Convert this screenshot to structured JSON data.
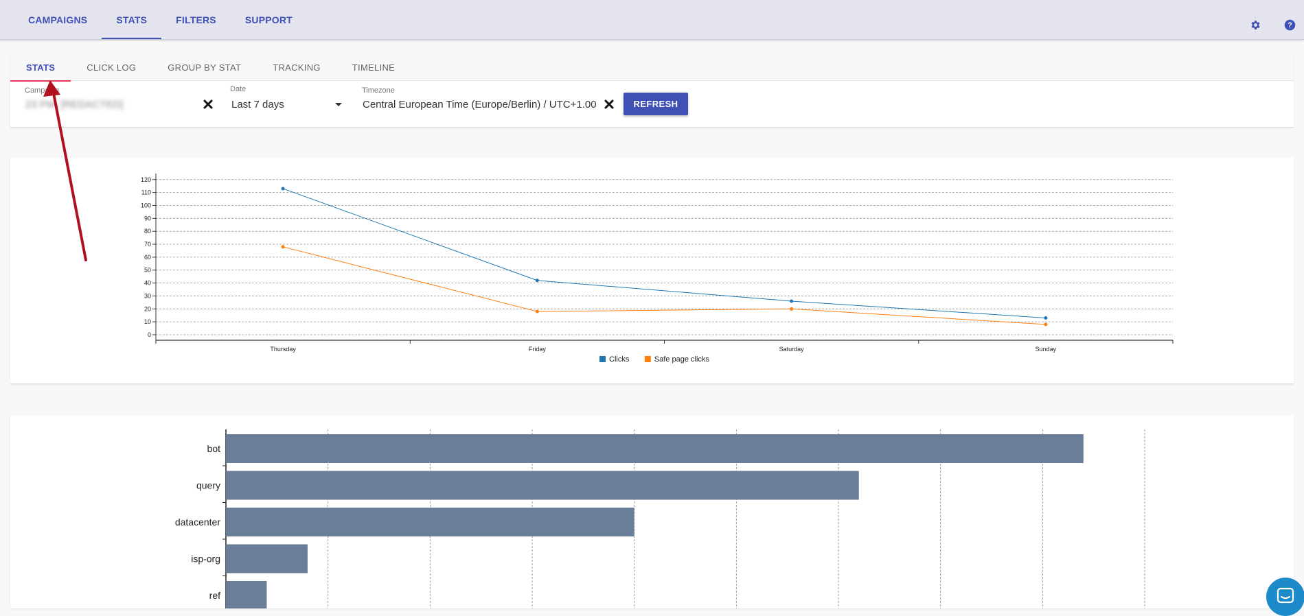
{
  "topnav": {
    "tabs": [
      {
        "label": "CAMPAIGNS",
        "active": false
      },
      {
        "label": "STATS",
        "active": true
      },
      {
        "label": "FILTERS",
        "active": false
      },
      {
        "label": "SUPPORT",
        "active": false
      }
    ],
    "icons": [
      "gear-icon",
      "help-icon"
    ]
  },
  "subnav": {
    "tabs": [
      {
        "label": "STATS",
        "active": true
      },
      {
        "label": "CLICK LOG",
        "active": false
      },
      {
        "label": "GROUP BY STAT",
        "active": false
      },
      {
        "label": "TRACKING",
        "active": false
      },
      {
        "label": "TIMELINE",
        "active": false
      }
    ]
  },
  "filters": {
    "campaign": {
      "label": "Campaign",
      "value": "23 PM: [REDACTED]"
    },
    "date": {
      "label": "Date",
      "value": "Last 7 days"
    },
    "timezone": {
      "label": "Timezone",
      "value": "Central European Time (Europe/Berlin) / UTC+1.00"
    },
    "refresh_label": "REFRESH"
  },
  "colors": {
    "accent": "#3f51b5",
    "active_underline": "#e53958",
    "clicks": "#1f77b4",
    "safe_page_clicks": "#ff7f0e",
    "bars": "#6a7d99",
    "annotation": "#b01020"
  },
  "chart_data": [
    {
      "type": "line",
      "x": [
        "Thursday",
        "Friday",
        "Saturday",
        "Sunday"
      ],
      "series": [
        {
          "name": "Clicks",
          "values": [
            113,
            42,
            26,
            13
          ]
        },
        {
          "name": "Safe page clicks",
          "values": [
            68,
            18,
            20,
            8
          ]
        }
      ],
      "yticks": [
        0,
        10,
        20,
        30,
        40,
        50,
        60,
        70,
        80,
        90,
        100,
        110,
        120
      ],
      "ylim": [
        0,
        122
      ],
      "grid": true,
      "legend": "bottom-center"
    },
    {
      "type": "bar",
      "orientation": "horizontal",
      "categories": [
        "bot",
        "query",
        "datacenter",
        "isp-org",
        "ref"
      ],
      "values": [
        42,
        31,
        20,
        4,
        2
      ],
      "xlim": [
        0,
        45
      ],
      "grid": true
    }
  ]
}
